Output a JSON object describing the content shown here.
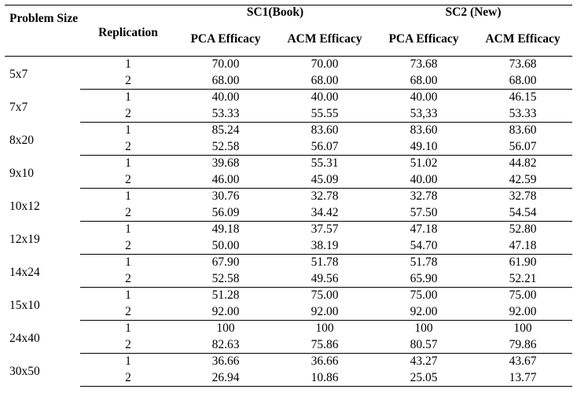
{
  "table": {
    "headers": {
      "problem_size": "Problem Size",
      "replication": "Replication",
      "groups": [
        "SC1(Book)",
        "SC2 (New)"
      ],
      "sub": [
        "PCA Efficacy",
        "ACM Efficacy",
        "PCA Efficacy",
        "ACM Efficacy"
      ]
    },
    "groups": [
      {
        "size": "5x7",
        "rows": [
          [
            "1",
            "70.00",
            "70.00",
            "73.68",
            "73.68"
          ],
          [
            "2",
            "68.00",
            "68.00",
            "68.00",
            "68.00"
          ]
        ]
      },
      {
        "size": "7x7",
        "rows": [
          [
            "1",
            "40.00",
            "40.00",
            "40.00",
            "46.15"
          ],
          [
            "2",
            "53.33",
            "55.55",
            "53,33",
            "53.33"
          ]
        ]
      },
      {
        "size": "8x20",
        "rows": [
          [
            "1",
            "85.24",
            "83.60",
            "83.60",
            "83.60"
          ],
          [
            "2",
            "52.58",
            "56.07",
            "49.10",
            "56.07"
          ]
        ]
      },
      {
        "size": "9x10",
        "rows": [
          [
            "1",
            "39.68",
            "55.31",
            "51.02",
            "44.82"
          ],
          [
            "2",
            "46.00",
            "45.09",
            "40.00",
            "42.59"
          ]
        ]
      },
      {
        "size": "10x12",
        "rows": [
          [
            "1",
            "30.76",
            "32.78",
            "32.78",
            "32.78"
          ],
          [
            "2",
            "56.09",
            "34.42",
            "57.50",
            "54.54"
          ]
        ]
      },
      {
        "size": "12x19",
        "rows": [
          [
            "1",
            "49.18",
            "37.57",
            "47.18",
            "52.80"
          ],
          [
            "2",
            "50.00",
            "38.19",
            "54.70",
            "47.18"
          ]
        ]
      },
      {
        "size": "14x24",
        "rows": [
          [
            "1",
            "67.90",
            "51.78",
            "51.78",
            "61.90"
          ],
          [
            "2",
            "52.58",
            "49.56",
            "65.90",
            "52.21"
          ]
        ]
      },
      {
        "size": "15x10",
        "rows": [
          [
            "1",
            "51.28",
            "75.00",
            "75.00",
            "75.00"
          ],
          [
            "2",
            "92.00",
            "92.00",
            "92.00",
            "92.00"
          ]
        ]
      },
      {
        "size": "24x40",
        "rows": [
          [
            "1",
            "100",
            "100",
            "100",
            "100"
          ],
          [
            "2",
            "82.63",
            "75.86",
            "80.57",
            "79.86"
          ]
        ]
      },
      {
        "size": "30x50",
        "rows": [
          [
            "1",
            "36.66",
            "36.66",
            "43.27",
            "43.67"
          ],
          [
            "2",
            "26.94",
            "10.86",
            "25.05",
            "13.77"
          ]
        ]
      }
    ]
  }
}
